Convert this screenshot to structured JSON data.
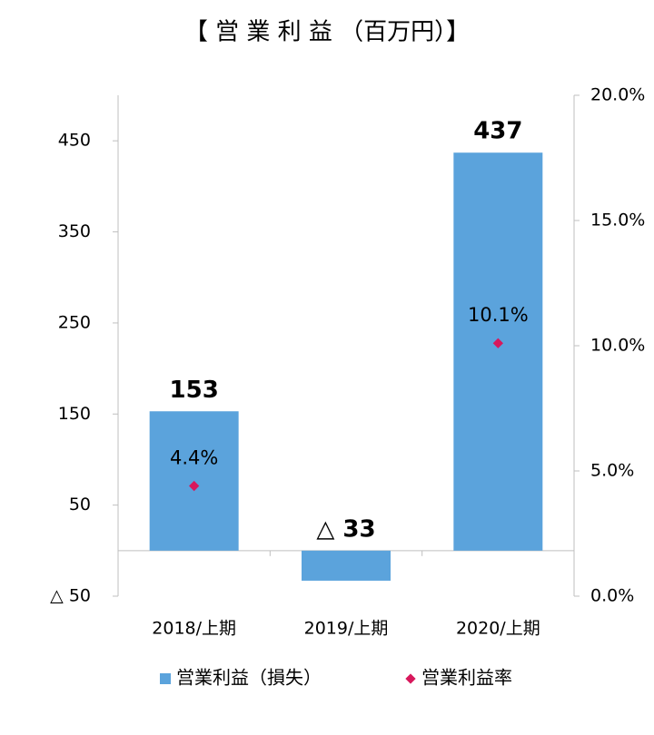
{
  "chart_data": {
    "type": "bar",
    "title": "【 営 業 利 益 （百万円）】",
    "categories": [
      "2018/上期",
      "2019/上期",
      "2020/上期"
    ],
    "series": [
      {
        "name": "営業利益（損失）",
        "type": "bar",
        "color": "#5ba3dc",
        "values": [
          153,
          -33,
          437
        ],
        "value_labels": [
          "153",
          "△ 33",
          "437"
        ]
      },
      {
        "name": "営業利益率",
        "type": "scatter",
        "axis": "y2",
        "color": "#d8185c",
        "values": [
          4.4,
          null,
          10.1
        ],
        "value_labels": [
          "4.4%",
          null,
          "10.1%"
        ]
      }
    ],
    "ylim": [
      -50,
      500
    ],
    "yticks": [
      {
        "value": -50,
        "label": "△ 50"
      },
      50,
      150,
      250,
      350,
      450
    ],
    "y2lim": [
      0,
      20
    ],
    "y2ticks": [
      {
        "value": 0,
        "label": "0.0%"
      },
      {
        "value": 5,
        "label": "5.0%"
      },
      {
        "value": 10,
        "label": "10.0%"
      },
      {
        "value": 15,
        "label": "15.0%"
      },
      {
        "value": 20,
        "label": "20.0%"
      }
    ],
    "grid": false,
    "legend": "bottom",
    "negative_color": "#ee1111"
  }
}
